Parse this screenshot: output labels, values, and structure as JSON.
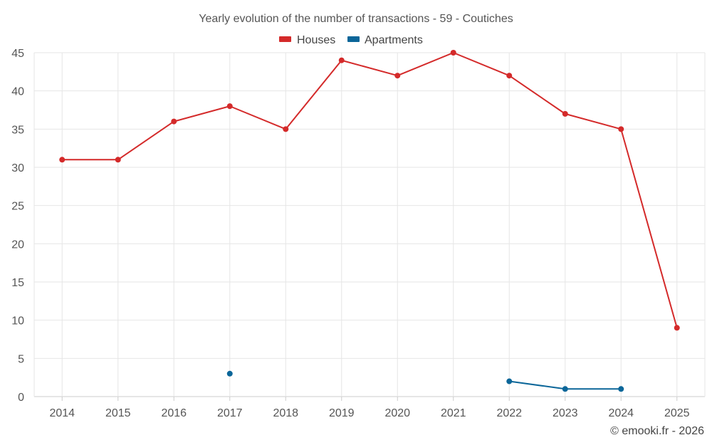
{
  "chart_data": {
    "type": "line",
    "title": "Yearly evolution of the number of transactions - 59 - Coutiches",
    "categories": [
      "2014",
      "2015",
      "2016",
      "2017",
      "2018",
      "2019",
      "2020",
      "2021",
      "2022",
      "2023",
      "2024",
      "2025"
    ],
    "ylim": [
      0,
      45
    ],
    "yticks": [
      0,
      5,
      10,
      15,
      20,
      25,
      30,
      35,
      40,
      45
    ],
    "grid": true,
    "legend_position": "top-center",
    "series": [
      {
        "name": "Houses",
        "color": "#d42a2a",
        "values": [
          31,
          31,
          36,
          38,
          35,
          44,
          42,
          45,
          42,
          37,
          35,
          9
        ]
      },
      {
        "name": "Apartments",
        "color": "#0b6699",
        "values": [
          null,
          null,
          null,
          3,
          null,
          null,
          null,
          null,
          2,
          1,
          1,
          null
        ]
      }
    ],
    "credit": "© emooki.fr - 2026"
  }
}
